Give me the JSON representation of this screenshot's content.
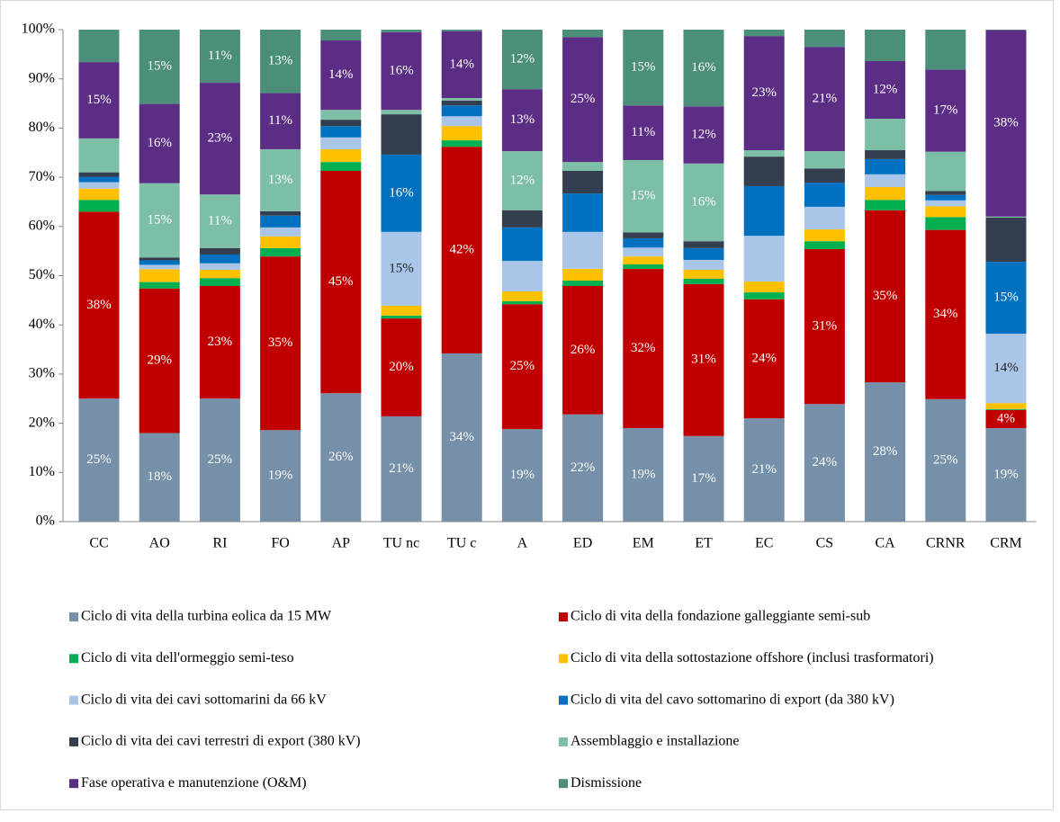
{
  "chart_data": {
    "type": "stacked_bar",
    "categories": [
      "CC",
      "AO",
      "RI",
      "FO",
      "AP",
      "TU nc",
      "TU c",
      "A",
      "ED",
      "EM",
      "ET",
      "EC",
      "CS",
      "CA",
      "CRNR",
      "CRM"
    ],
    "ylim": [
      0,
      100
    ],
    "yticks": [
      {
        "value": 0,
        "label": "0%"
      },
      {
        "value": 10,
        "label": "10%"
      },
      {
        "value": 20,
        "label": "20%"
      },
      {
        "value": 30,
        "label": "30%"
      },
      {
        "value": 40,
        "label": "40%"
      },
      {
        "value": 50,
        "label": "50%"
      },
      {
        "value": 60,
        "label": "60%"
      },
      {
        "value": 70,
        "label": "70%"
      },
      {
        "value": 80,
        "label": "80%"
      },
      {
        "value": 90,
        "label": "90%"
      },
      {
        "value": 100,
        "label": "100%"
      }
    ],
    "grid": false,
    "legend": "bottom",
    "series": [
      {
        "name": "Ciclo di vita della turbina eolica da 15 MW",
        "color": "#7590a8",
        "values": [
          25,
          18,
          25,
          18.6,
          26.1,
          21.4,
          34.2,
          18.8,
          21.8,
          19,
          17.4,
          21,
          23.9,
          28.3,
          24.9,
          19
        ],
        "value_labels": [
          "25%",
          "18%",
          "25%",
          "19%",
          "26%",
          "21%",
          "34%",
          "19%",
          "22%",
          "19%",
          "17%",
          "21%",
          "24%",
          "28%",
          "25%",
          "19%"
        ]
      },
      {
        "name": "Ciclo di vita della fondazione galleggiante semi-sub",
        "color": "#c00000",
        "values": [
          38,
          29.4,
          22.9,
          35.3,
          45.2,
          19.9,
          42,
          25.4,
          26.1,
          32.4,
          30.9,
          24.2,
          31.5,
          35,
          34.4,
          3.7
        ],
        "value_labels": [
          "38%",
          "29%",
          "23%",
          "35%",
          "45%",
          "20%",
          "42%",
          "25%",
          "26%",
          "32%",
          "31%",
          "24%",
          "31%",
          "35%",
          "34%",
          "4%"
        ]
      },
      {
        "name": "Ciclo di vita dell'ormeggio semi-teso",
        "color": "#00b050",
        "values": [
          2.4,
          1.3,
          1.6,
          1.7,
          1.8,
          0.6,
          1.3,
          0.6,
          1.1,
          0.9,
          1.1,
          1.4,
          1.6,
          2.1,
          2.6,
          0.2
        ]
      },
      {
        "name": "Ciclo di vita della sottostazione offshore (inclusi trasformatori)",
        "color": "#ffc000",
        "values": [
          2.3,
          2.6,
          1.7,
          2.4,
          2.6,
          2,
          2.9,
          2,
          2.4,
          1.6,
          1.8,
          2.2,
          2.4,
          2.6,
          2.2,
          1.2
        ]
      },
      {
        "name": " Ciclo di vita dei cavi sottomarini da 66 kV",
        "color": "#a9c6e8",
        "values": [
          1.3,
          0.9,
          1.3,
          1.8,
          2.4,
          15,
          2,
          6.2,
          7.5,
          1.8,
          2,
          9.3,
          4.6,
          2.6,
          1.2,
          14.1
        ],
        "value_labels": [
          null,
          null,
          null,
          null,
          null,
          "15%",
          null,
          null,
          null,
          null,
          null,
          null,
          null,
          null,
          null,
          "14%"
        ]
      },
      {
        "name": "Ciclo di vita del cavo sottomarino di export (da 380 kV)",
        "color": "#0070c0",
        "values": [
          1.1,
          0.9,
          1.8,
          2.4,
          2.3,
          15.7,
          2.2,
          6.8,
          7.8,
          1.9,
          2.4,
          10.1,
          4.9,
          3.1,
          1.1,
          14.6
        ],
        "value_labels": [
          null,
          null,
          null,
          null,
          null,
          "16%",
          null,
          null,
          null,
          null,
          null,
          null,
          null,
          null,
          null,
          "15%"
        ]
      },
      {
        "name": "Ciclo di vita dei cavi terrestri di export (380 kV)",
        "color": "#333f4f",
        "values": [
          0.9,
          0.6,
          1.3,
          0.9,
          1.3,
          8.2,
          1,
          3.5,
          4.6,
          1.2,
          1.4,
          6,
          2.9,
          1.8,
          0.8,
          9
        ]
      },
      {
        "name": "Assemblaggio e installazione",
        "color": "#7dbfa6",
        "values": [
          6.9,
          15.1,
          10.9,
          12.6,
          2,
          0.9,
          0.5,
          12,
          1.8,
          14.7,
          15.8,
          1.3,
          3.5,
          6.4,
          8,
          0.2
        ],
        "value_labels": [
          null,
          "15%",
          "11%",
          "13%",
          null,
          null,
          null,
          "12%",
          null,
          "15%",
          "16%",
          null,
          null,
          null,
          null,
          null
        ]
      },
      {
        "name": "Fase operativa e manutenzione (O&M)",
        "color": "#5c2d84",
        "values": [
          15.5,
          16.1,
          22.7,
          11.4,
          14.1,
          15.8,
          13.6,
          12.6,
          25.4,
          11.1,
          11.6,
          23.2,
          21.2,
          11.7,
          16.7,
          37.9
        ],
        "value_labels": [
          "15%",
          "16%",
          "23%",
          "11%",
          "14%",
          "16%",
          "14%",
          "13%",
          "25%",
          "11%",
          "12%",
          "23%",
          "21%",
          "12%",
          "17%",
          "38%"
        ]
      },
      {
        "name": "Dismissione",
        "color": "#4b8f7b",
        "values": [
          6.6,
          15.1,
          10.8,
          12.9,
          2.2,
          0.5,
          0.3,
          12.1,
          1.5,
          15.4,
          15.6,
          1.3,
          3.5,
          6.4,
          8.1,
          0.1
        ],
        "value_labels": [
          null,
          "15%",
          "11%",
          "13%",
          null,
          null,
          null,
          "12%",
          null,
          "15%",
          "16%",
          null,
          null,
          null,
          null,
          null
        ]
      }
    ]
  }
}
